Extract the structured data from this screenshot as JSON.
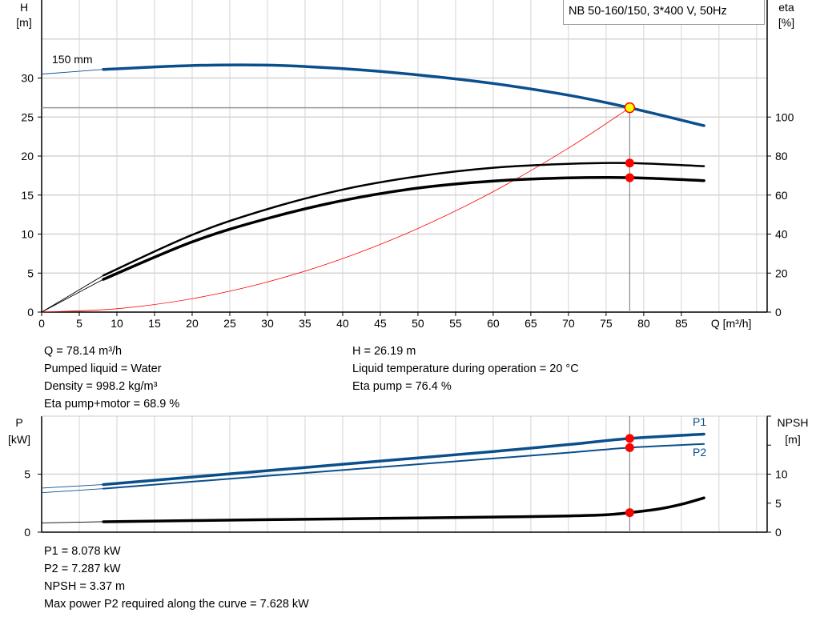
{
  "chart_data": [
    {
      "type": "line",
      "title": "NB 50-160/150, 3*400 V, 50Hz",
      "xlabel": "Q [m³/h]",
      "ylabel": "H\n[m]",
      "y2label": "eta\n[%]",
      "xlim": [
        0,
        96.4
      ],
      "ylim": [
        0,
        40
      ],
      "y2lim": [
        0,
        160
      ],
      "xticks": [
        "0",
        "5",
        "10",
        "15",
        "20",
        "25",
        "30",
        "35",
        "40",
        "45",
        "50",
        "55",
        "60",
        "65",
        "70",
        "75",
        "80",
        "85"
      ],
      "yticks": [
        "0",
        "5",
        "10",
        "15",
        "20",
        "25",
        "30"
      ],
      "y2ticks": [
        "0",
        "20",
        "40",
        "60",
        "80",
        "100"
      ],
      "grid": true,
      "curve_label": "150 mm",
      "series": [
        {
          "name": "150 mm",
          "axis": "H",
          "color": "#0a4f8c",
          "x": [
            0,
            8.2,
            20,
            30,
            40,
            50,
            60,
            70,
            78.14,
            88
          ],
          "y": [
            30.5,
            31.1,
            31.6,
            31.65,
            31.2,
            30.4,
            29.3,
            27.8,
            26.19,
            23.9
          ]
        },
        {
          "axis": "eta",
          "color": "#000000",
          "x": [
            0,
            8.2,
            20,
            30,
            40,
            50,
            60,
            70,
            78.14,
            88
          ],
          "y": [
            0,
            18.8,
            39.6,
            52.8,
            62.8,
            69.6,
            74,
            76,
            76.4,
            74.8
          ]
        },
        {
          "axis": "eta",
          "color": "#000000",
          "x": [
            0,
            8.2,
            20,
            30,
            40,
            50,
            60,
            70,
            78.14,
            88
          ],
          "y": [
            0,
            16.8,
            36,
            48,
            57.2,
            63.6,
            67.2,
            68.8,
            68.9,
            67.4
          ]
        },
        {
          "axis": "H",
          "color": "#ff0000",
          "system_curve": true,
          "x": [
            0,
            10,
            20,
            30,
            40,
            50,
            60,
            70,
            78.14
          ],
          "y": [
            0,
            0.43,
            1.72,
            3.86,
            6.86,
            10.72,
            15.44,
            21.02,
            26.19
          ]
        }
      ],
      "operating_point": {
        "Q": 78.14,
        "H": 26.19,
        "eta_pump": 76.4,
        "eta_total": 68.9
      }
    },
    {
      "type": "line",
      "xlim": [
        0,
        96.4
      ],
      "ylabel": "P\n[kW]",
      "y2label": "NPSH\n[m]",
      "ylim": [
        0,
        10
      ],
      "y2lim": [
        0,
        20
      ],
      "yticks": [
        "0",
        "5"
      ],
      "y2ticks": [
        "0",
        "5",
        "10"
      ],
      "grid": true,
      "series": [
        {
          "name": "P1",
          "axis": "P",
          "color": "#0a4f8c",
          "x": [
            0,
            8.2,
            20,
            30,
            40,
            50,
            60,
            70,
            78.14,
            88
          ],
          "y": [
            3.8,
            4.1,
            4.75,
            5.3,
            5.85,
            6.4,
            6.95,
            7.55,
            8.078,
            8.45
          ]
        },
        {
          "name": "P2",
          "axis": "P",
          "color": "#0a4f8c",
          "x": [
            0,
            8.2,
            20,
            30,
            40,
            50,
            60,
            70,
            78.14,
            88
          ],
          "y": [
            3.4,
            3.75,
            4.35,
            4.85,
            5.35,
            5.85,
            6.35,
            6.85,
            7.287,
            7.6
          ]
        },
        {
          "name": "NPSH",
          "axis": "NPSH",
          "color": "#000000",
          "x": [
            0,
            8.2,
            20,
            30,
            40,
            50,
            60,
            70,
            75,
            78.14,
            82,
            85,
            88
          ],
          "y": [
            1.6,
            1.8,
            2.0,
            2.15,
            2.3,
            2.45,
            2.6,
            2.8,
            3.0,
            3.37,
            4.0,
            4.8,
            5.9
          ]
        }
      ]
    }
  ],
  "info_top": {
    "col1": [
      "Q = 78.14 m³/h",
      "Pumped liquid = Water",
      "Density = 998.2 kg/m³",
      "Eta pump+motor = 68.9 %"
    ],
    "col2": [
      "H = 26.19 m",
      "Liquid temperature during operation = 20 °C",
      "Eta pump = 76.4 %"
    ]
  },
  "info_bottom": [
    "P1 = 8.078 kW",
    "P2 = 7.287 kW",
    "NPSH = 3.37 m",
    "Max power P2 required along the curve = 7.628 kW"
  ],
  "colors": {
    "curve_blue": "#0a4f8c",
    "marker": "#ff0000",
    "op_point": "#ffff00",
    "grid": "#d4d4d4"
  }
}
